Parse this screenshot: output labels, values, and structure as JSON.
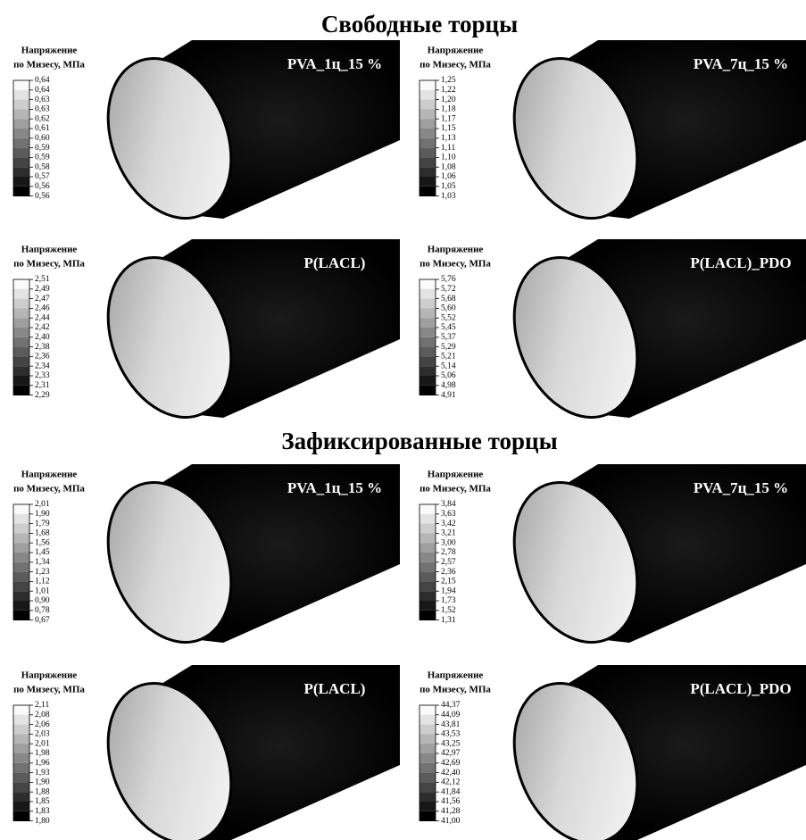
{
  "sections": [
    {
      "title": "Свободные торцы",
      "panels": [
        {
          "label": "PVA_1ц_15 %",
          "legend_title": [
            "Напряжение",
            "по Мизесу, МПа"
          ],
          "legend_values": [
            "0,64",
            "0,64",
            "0,63",
            "0,63",
            "0,62",
            "0,61",
            "0,60",
            "0,59",
            "0,59",
            "0,58",
            "0,57",
            "0,56",
            "0,56"
          ]
        },
        {
          "label": "PVA_7ц_15 %",
          "legend_title": [
            "Напряжение",
            "по Мизесу, МПа"
          ],
          "legend_values": [
            "1,25",
            "1,22",
            "1,20",
            "1,18",
            "1,17",
            "1,15",
            "1,13",
            "1,11",
            "1,10",
            "1,08",
            "1,06",
            "1,05",
            "1,03"
          ]
        },
        {
          "label": "P(LACL)",
          "legend_title": [
            "Напряжение",
            "по Мизесу, МПа"
          ],
          "legend_values": [
            "2,51",
            "2,49",
            "2,47",
            "2,46",
            "2,44",
            "2,42",
            "2,40",
            "2,38",
            "2,36",
            "2,34",
            "2,33",
            "2,31",
            "2,29"
          ]
        },
        {
          "label": "P(LACL)_PDO",
          "legend_title": [
            "Напряжение",
            "по Мизесу, МПа"
          ],
          "legend_values": [
            "5,76",
            "5,72",
            "5,68",
            "5,60",
            "5,52",
            "5,45",
            "5,37",
            "5,29",
            "5,21",
            "5,14",
            "5,06",
            "4,98",
            "4,91"
          ]
        }
      ]
    },
    {
      "title": "Зафиксированные торцы",
      "panels": [
        {
          "label": "PVA_1ц_15 %",
          "legend_title": [
            "Напряжение",
            "по Мизесу, МПа"
          ],
          "legend_values": [
            "2,01",
            "1,90",
            "1,79",
            "1,68",
            "1,56",
            "1,45",
            "1,34",
            "1,23",
            "1,12",
            "1,01",
            "0,90",
            "0,78",
            "0,67"
          ]
        },
        {
          "label": "PVA_7ц_15 %",
          "legend_title": [
            "Напряжение",
            "по Мизесу, МПа"
          ],
          "legend_values": [
            "3,84",
            "3,63",
            "3,42",
            "3,21",
            "3,00",
            "2,78",
            "2,57",
            "2,36",
            "2,15",
            "1,94",
            "1,73",
            "1,52",
            "1,31"
          ]
        },
        {
          "label": "P(LACL)",
          "legend_title": [
            "Напряжение",
            "по Мизесу, МПа"
          ],
          "legend_values": [
            "2,11",
            "2,08",
            "2,06",
            "2,03",
            "2,01",
            "1,98",
            "1,96",
            "1,93",
            "1,90",
            "1,88",
            "1,85",
            "1,83",
            "1,80"
          ]
        },
        {
          "label": "P(LACL)_PDO",
          "legend_title": [
            "Напряжение",
            "по Мизесу, МПа"
          ],
          "legend_values": [
            "44,37",
            "44,09",
            "43,81",
            "43,53",
            "43,25",
            "42,97",
            "42,69",
            "42,40",
            "42,12",
            "41,84",
            "41,56",
            "41,28",
            "41,00"
          ]
        }
      ]
    }
  ]
}
